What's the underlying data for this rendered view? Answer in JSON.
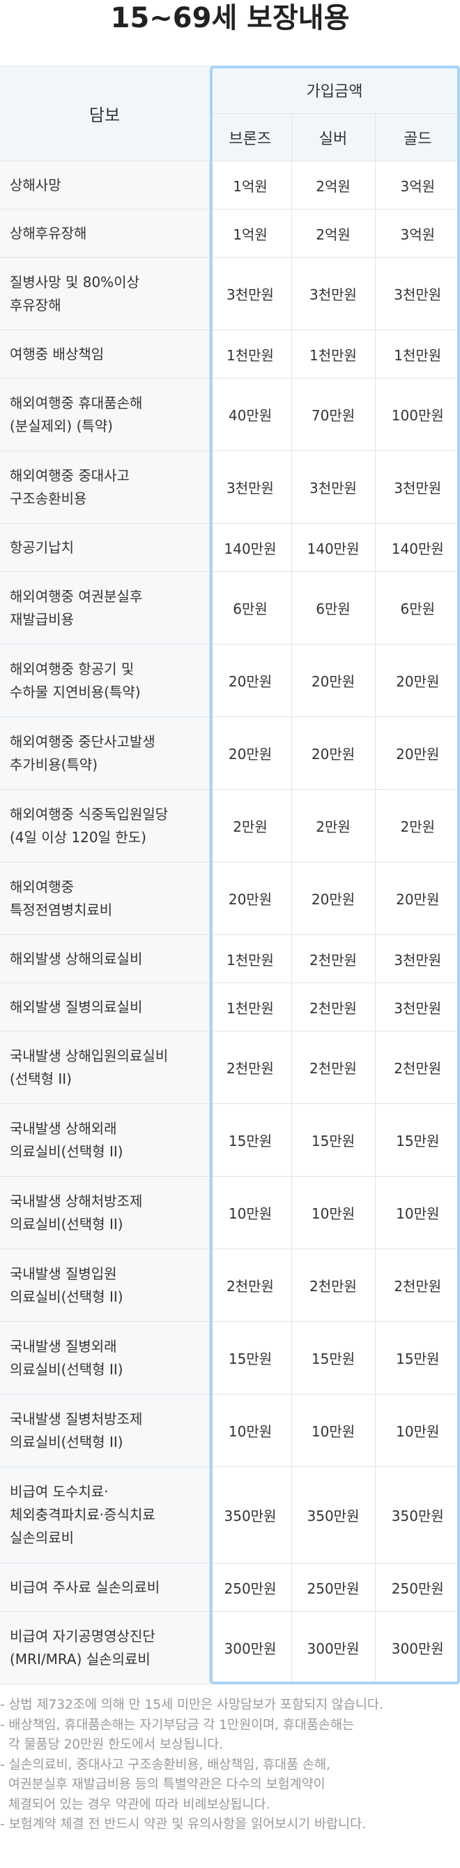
{
  "title": "15~69세 보장내용",
  "header": {
    "coverage": "담보",
    "amount": "가입금액",
    "plans": [
      "브론즈",
      "실버",
      "골드"
    ]
  },
  "rows": [
    {
      "name": [
        "상해사망"
      ],
      "values": [
        "1억원",
        "2억원",
        "3억원"
      ]
    },
    {
      "name": [
        "상해후유장해"
      ],
      "values": [
        "1억원",
        "2억원",
        "3억원"
      ]
    },
    {
      "name": [
        "질병사망 및 80%이상",
        "후유장해"
      ],
      "values": [
        "3천만원",
        "3천만원",
        "3천만원"
      ]
    },
    {
      "name": [
        "여행중 배상책임"
      ],
      "values": [
        "1천만원",
        "1천만원",
        "1천만원"
      ]
    },
    {
      "name": [
        "해외여행중 휴대품손해",
        "(분실제외) (특약)"
      ],
      "values": [
        "40만원",
        "70만원",
        "100만원"
      ]
    },
    {
      "name": [
        "해외여행중 중대사고",
        "구조송환비용"
      ],
      "values": [
        "3천만원",
        "3천만원",
        "3천만원"
      ]
    },
    {
      "name": [
        "항공기납치"
      ],
      "values": [
        "140만원",
        "140만원",
        "140만원"
      ]
    },
    {
      "name": [
        "해외여행중 여권분실후",
        "재발급비용"
      ],
      "values": [
        "6만원",
        "6만원",
        "6만원"
      ]
    },
    {
      "name": [
        "해외여행중 항공기 및",
        "수하물 지연비용(특약)"
      ],
      "values": [
        "20만원",
        "20만원",
        "20만원"
      ]
    },
    {
      "name": [
        "해외여행중 중단사고발생",
        "추가비용(특약)"
      ],
      "values": [
        "20만원",
        "20만원",
        "20만원"
      ]
    },
    {
      "name": [
        "해외여행중 식중독입원일당",
        "(4일 이상 120일 한도)"
      ],
      "values": [
        "2만원",
        "2만원",
        "2만원"
      ]
    },
    {
      "name": [
        "해외여행중",
        "특정전염병치료비"
      ],
      "values": [
        "20만원",
        "20만원",
        "20만원"
      ]
    },
    {
      "name": [
        "해외발생 상해의료실비"
      ],
      "values": [
        "1천만원",
        "2천만원",
        "3천만원"
      ]
    },
    {
      "name": [
        "해외발생 질병의료실비"
      ],
      "values": [
        "1천만원",
        "2천만원",
        "3천만원"
      ]
    },
    {
      "name": [
        "국내발생 상해입원의료실비",
        "(선택형 II)"
      ],
      "values": [
        "2천만원",
        "2천만원",
        "2천만원"
      ]
    },
    {
      "name": [
        "국내발생 상해외래",
        "의료실비(선택형 II)"
      ],
      "values": [
        "15만원",
        "15만원",
        "15만원"
      ]
    },
    {
      "name": [
        "국내발생 상해처방조제",
        "의료실비(선택형 II)"
      ],
      "values": [
        "10만원",
        "10만원",
        "10만원"
      ]
    },
    {
      "name": [
        "국내발생 질병입원",
        "의료실비(선택형 II)"
      ],
      "values": [
        "2천만원",
        "2천만원",
        "2천만원"
      ]
    },
    {
      "name": [
        "국내발생 질병외래",
        "의료실비(선택형 II)"
      ],
      "values": [
        "15만원",
        "15만원",
        "15만원"
      ]
    },
    {
      "name": [
        "국내발생 질병처방조제",
        "의료실비(선택형 II)"
      ],
      "values": [
        "10만원",
        "10만원",
        "10만원"
      ]
    },
    {
      "name": [
        "비급여 도수치료·",
        "체외충격파치료·증식치료",
        "실손의료비"
      ],
      "values": [
        "350만원",
        "350만원",
        "350만원"
      ]
    },
    {
      "name": [
        "비급여 주사료 실손의료비"
      ],
      "values": [
        "250만원",
        "250만원",
        "250만원"
      ]
    },
    {
      "name": [
        "비급여 자기공명영상진단",
        "(MRI/MRA) 실손의료비"
      ],
      "values": [
        "300만원",
        "300만원",
        "300만원"
      ]
    }
  ],
  "notes": [
    "- 상법 제732조에 의해 만 15세 미만은 사망담보가 포함되지 않습니다.",
    "- 배상책임, 휴대품손해는 자기부담금 각 1만원이며, 휴대품손해는",
    "  각 물품당 20만원 한도에서 보상됩니다.",
    "- 실손의료비, 중대사고 구조송환비용, 배상책임, 휴대품 손해,",
    "  여권분실후 재발급비용 등의 특별약관은 다수의 보험계약이",
    "  체결되어 있는 경우 약관에 따라 비례보상됩니다.",
    "- 보험계약 체결 전 반드시 약관 및 유의사항을 읽어보시기 바랍니다."
  ]
}
